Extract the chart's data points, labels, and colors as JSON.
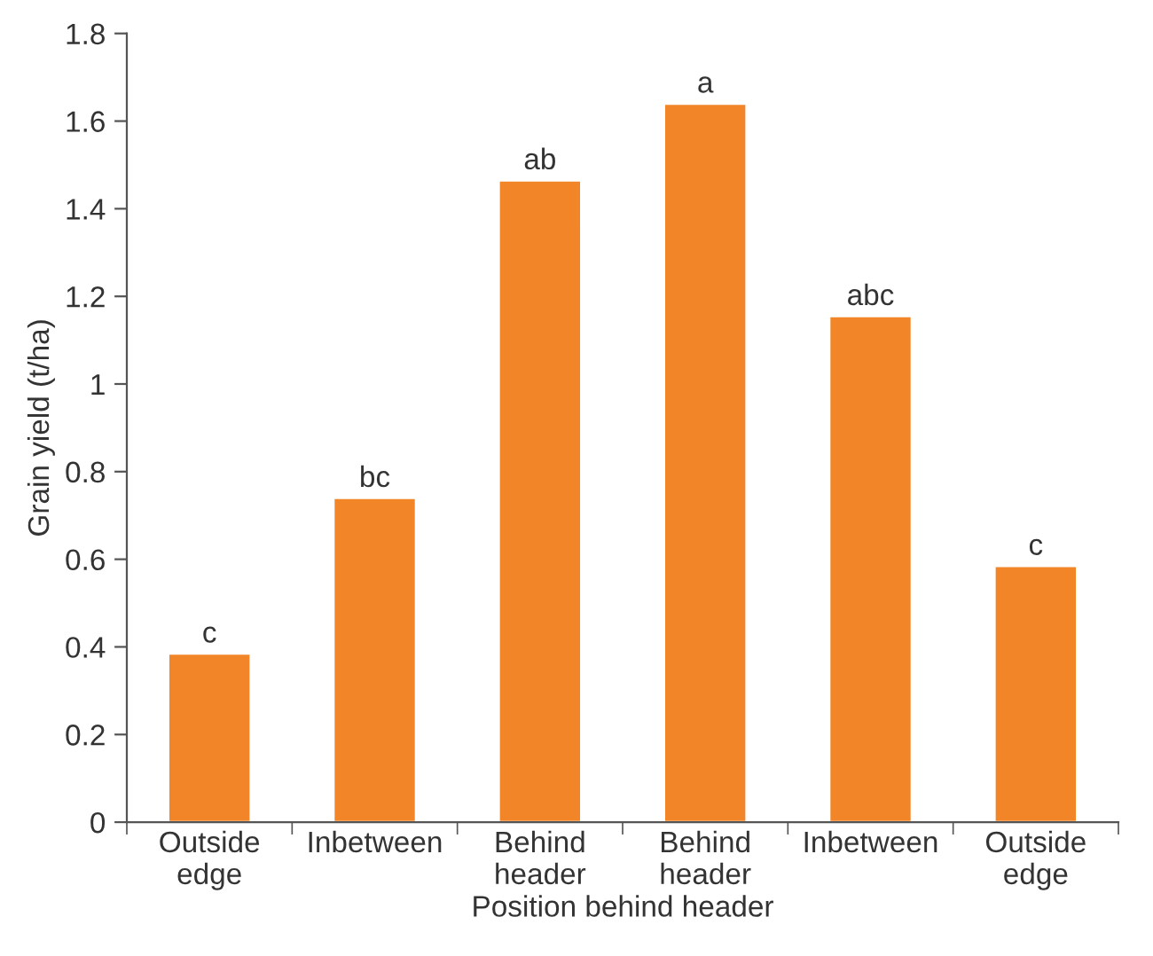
{
  "chart_data": {
    "type": "bar",
    "xlabel": "Position behind header",
    "ylabel": "Grain yield (t/ha)",
    "categories": [
      "Outside\nedge",
      "Inbetween",
      "Behind\nheader",
      "Behind\nheader",
      "Inbetween",
      "Outside\nedge"
    ],
    "values": [
      0.385,
      0.74,
      1.465,
      1.64,
      1.155,
      0.585
    ],
    "value_labels": [
      "c",
      "bc",
      "ab",
      "a",
      "abc",
      "c"
    ],
    "color": "#f28527",
    "ylim": [
      0,
      1.8
    ],
    "yticks": [
      0,
      0.2,
      0.4,
      0.6,
      0.8,
      1,
      1.2,
      1.4,
      1.6,
      1.8
    ],
    "grid": false,
    "legend": false
  }
}
